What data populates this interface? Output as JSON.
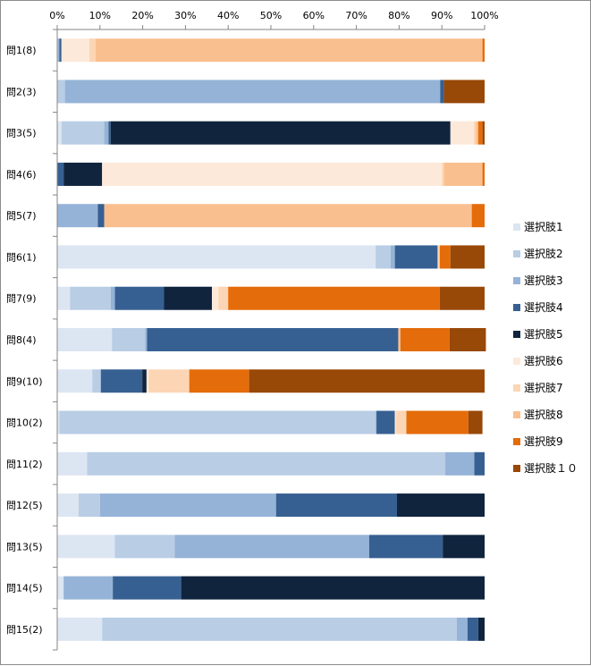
{
  "chart_data": {
    "type": "bar",
    "orientation": "horizontal",
    "stacked": "percent",
    "title": "",
    "xlabel": "",
    "ylabel": "",
    "xlim": [
      0,
      100
    ],
    "x_ticks": [
      "0%",
      "10%",
      "20%",
      "30%",
      "40%",
      "50%",
      "60%",
      "70%",
      "80%",
      "90%",
      "100%"
    ],
    "x_axis_position": "top",
    "grid": false,
    "legend_position": "right",
    "categories": [
      "問1(8)",
      "問2(3)",
      "問3(5)",
      "問4(6)",
      "問5(7)",
      "問6(1)",
      "問7(9)",
      "問8(4)",
      "問9(10)",
      "問10(2)",
      "問11(2)",
      "問12(5)",
      "問13(5)",
      "問14(5)",
      "問15(2)"
    ],
    "series": [
      {
        "name": "選択肢1",
        "color": "#dce6f2",
        "values": [
          0.0,
          0.0,
          1.0,
          0.0,
          0.0,
          74.5,
          3.0,
          12.8,
          8.2,
          0.5,
          7.0,
          5.0,
          13.5,
          1.5,
          10.5
        ]
      },
      {
        "name": "選択肢2",
        "color": "#b9cde5",
        "values": [
          0.2,
          1.8,
          10.0,
          0.0,
          0.0,
          3.5,
          9.5,
          7.8,
          2.0,
          74.0,
          83.8,
          5.0,
          14.0,
          0.0,
          83.0
        ]
      },
      {
        "name": "選択肢3",
        "color": "#95b3d7",
        "values": [
          0.3,
          87.8,
          1.0,
          0.0,
          9.5,
          1.0,
          1.0,
          0.4,
          0.0,
          0.2,
          6.8,
          41.2,
          45.5,
          11.5,
          2.5
        ]
      },
      {
        "name": "選択肢4",
        "color": "#376092",
        "values": [
          0.5,
          0.9,
          0.5,
          1.5,
          1.5,
          10.0,
          11.5,
          58.8,
          9.7,
          4.3,
          2.4,
          28.3,
          17.2,
          16.0,
          2.5
        ]
      },
      {
        "name": "選択肢5",
        "color": "#10243e",
        "values": [
          0.0,
          0.0,
          79.5,
          9.0,
          0.0,
          0.0,
          11.2,
          0.0,
          1.0,
          0.0,
          0.0,
          20.5,
          9.8,
          71.0,
          1.5
        ]
      },
      {
        "name": "選択肢6",
        "color": "#fde9d9",
        "values": [
          6.5,
          0.0,
          5.5,
          79.5,
          0.0,
          0.0,
          1.5,
          0.0,
          0.5,
          0.3,
          0.0,
          0.0,
          0.0,
          0.0,
          0.0
        ]
      },
      {
        "name": "選択肢7",
        "color": "#fcd5b4",
        "values": [
          1.5,
          0.0,
          0.5,
          0.5,
          0.0,
          0.5,
          2.3,
          0.0,
          9.5,
          2.4,
          0.0,
          0.0,
          0.0,
          0.0,
          0.0
        ]
      },
      {
        "name": "選択肢8",
        "color": "#fabf8f",
        "values": [
          90.5,
          0.0,
          0.5,
          9.0,
          86.0,
          0.0,
          0.0,
          0.5,
          0.0,
          0.0,
          0.0,
          0.0,
          0.0,
          0.0,
          0.0
        ]
      },
      {
        "name": "選択肢9",
        "color": "#e46c0a",
        "values": [
          0.5,
          0.0,
          1.0,
          0.5,
          3.0,
          2.5,
          49.5,
          11.5,
          14.0,
          14.5,
          0.0,
          0.0,
          0.0,
          0.0,
          0.0
        ]
      },
      {
        "name": "選択肢１０",
        "color": "#984807",
        "values": [
          0.0,
          9.5,
          0.5,
          0.0,
          0.0,
          8.0,
          10.5,
          8.5,
          55.1,
          3.3,
          0.0,
          0.0,
          0.0,
          0.0,
          0.0
        ]
      }
    ]
  }
}
